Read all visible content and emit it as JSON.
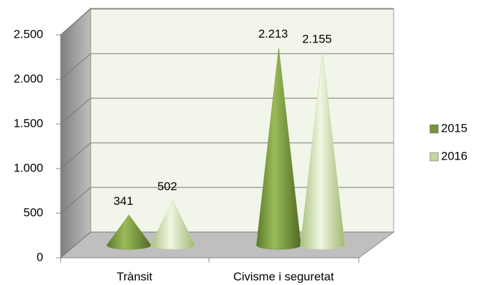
{
  "chart_data": {
    "type": "cone",
    "categories": [
      "Trànsit",
      "Civisme i seguretat"
    ],
    "series": [
      {
        "name": "2015",
        "color": "#77933c",
        "values": [
          341,
          2213
        ],
        "value_labels": [
          "341",
          "2.213"
        ]
      },
      {
        "name": "2016",
        "color": "#c3d69b",
        "values": [
          502,
          2155
        ],
        "value_labels": [
          "502",
          "2.155"
        ]
      }
    ],
    "ylim": [
      0,
      2500
    ],
    "yticks": [
      0,
      500,
      {
        "value": 1000,
        "label": "1.000"
      },
      {
        "value": 1500,
        "label": "1.500"
      },
      {
        "value": 2000,
        "label": "2.000"
      },
      {
        "value": 2500,
        "label": "2.500"
      }
    ],
    "grid": true,
    "legend": "right"
  }
}
